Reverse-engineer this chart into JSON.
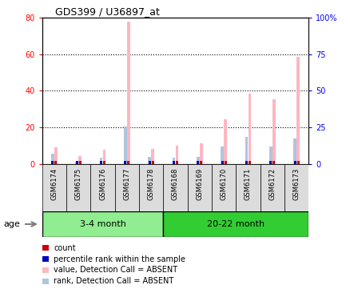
{
  "title": "GDS399 / U36897_at",
  "samples": [
    "GSM6174",
    "GSM6175",
    "GSM6176",
    "GSM6177",
    "GSM6178",
    "GSM6168",
    "GSM6169",
    "GSM6170",
    "GSM6171",
    "GSM6172",
    "GSM6173"
  ],
  "value_absent": [
    9.0,
    4.5,
    8.0,
    78.0,
    8.5,
    10.0,
    11.5,
    24.5,
    38.5,
    35.5,
    58.5
  ],
  "rank_absent_left": [
    5.5,
    1.5,
    3.5,
    20.5,
    4.0,
    3.5,
    4.0,
    9.5,
    15.0,
    9.5,
    14.0
  ],
  "ylim_left": [
    0,
    80
  ],
  "ylim_right": [
    0,
    100
  ],
  "yticks_left": [
    0,
    20,
    40,
    60,
    80
  ],
  "yticks_right": [
    0,
    25,
    50,
    75,
    100
  ],
  "ytick_labels_right": [
    "0",
    "25",
    "50",
    "75",
    "100%"
  ],
  "color_value_absent": "#FFB6C1",
  "color_rank_absent": "#B0C4DE",
  "color_count": "#CC0000",
  "color_rank_present": "#0000BB",
  "group1_color": "#90EE90",
  "group2_color": "#32CD32",
  "bg_color": "#DCDCDC",
  "legend_items": [
    {
      "color": "#CC0000",
      "label": "count"
    },
    {
      "color": "#0000BB",
      "label": "percentile rank within the sample"
    },
    {
      "color": "#FFB6C1",
      "label": "value, Detection Call = ABSENT"
    },
    {
      "color": "#B0C4DE",
      "label": "rank, Detection Call = ABSENT"
    }
  ]
}
